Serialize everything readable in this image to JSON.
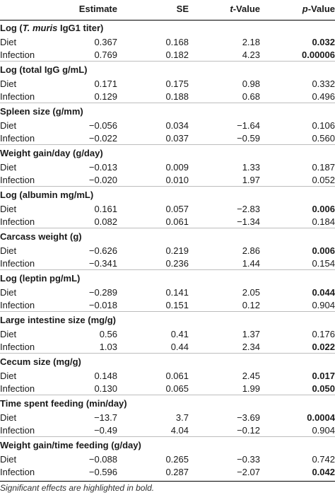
{
  "header": {
    "estimate": "Estimate",
    "se": "SE",
    "t_italic": "t",
    "t_rest": "-Value",
    "p_italic": "p",
    "p_rest": "-Value"
  },
  "sections": [
    {
      "title_pre": "Log (",
      "title_ital": "T. muris",
      "title_post": " IgG1 titer)",
      "rows": [
        {
          "label": "Diet",
          "estimate": "0.367",
          "se": "0.168",
          "t": "2.18",
          "p": "0.032",
          "sig": true
        },
        {
          "label": "Infection",
          "estimate": "0.769",
          "se": "0.182",
          "t": "4.23",
          "p": "0.00006",
          "sig": true
        }
      ]
    },
    {
      "title_pre": "Log (total IgG g/mL)",
      "title_ital": "",
      "title_post": "",
      "rows": [
        {
          "label": "Diet",
          "estimate": "0.171",
          "se": "0.175",
          "t": "0.98",
          "p": "0.332",
          "sig": false
        },
        {
          "label": "Infection",
          "estimate": "0.129",
          "se": "0.188",
          "t": "0.68",
          "p": "0.496",
          "sig": false
        }
      ]
    },
    {
      "title_pre": "Spleen size (g/mm)",
      "title_ital": "",
      "title_post": "",
      "rows": [
        {
          "label": "Diet",
          "estimate": "−0.056",
          "se": "0.034",
          "t": "−1.64",
          "p": "0.106",
          "sig": false
        },
        {
          "label": "Infection",
          "estimate": "−0.022",
          "se": "0.037",
          "t": "−0.59",
          "p": "0.560",
          "sig": false
        }
      ]
    },
    {
      "title_pre": "Weight gain/day (g/day)",
      "title_ital": "",
      "title_post": "",
      "rows": [
        {
          "label": "Diet",
          "estimate": "−0.013",
          "se": "0.009",
          "t": "1.33",
          "p": "0.187",
          "sig": false
        },
        {
          "label": "Infection",
          "estimate": "−0.020",
          "se": "0.010",
          "t": "1.97",
          "p": "0.052",
          "sig": false
        }
      ]
    },
    {
      "title_pre": "Log (albumin mg/mL)",
      "title_ital": "",
      "title_post": "",
      "rows": [
        {
          "label": "Diet",
          "estimate": "0.161",
          "se": "0.057",
          "t": "−2.83",
          "p": "0.006",
          "sig": true
        },
        {
          "label": "Infection",
          "estimate": "0.082",
          "se": "0.061",
          "t": "−1.34",
          "p": "0.184",
          "sig": false
        }
      ]
    },
    {
      "title_pre": "Carcass weight (g)",
      "title_ital": "",
      "title_post": "",
      "rows": [
        {
          "label": "Diet",
          "estimate": "−0.626",
          "se": "0.219",
          "t": "2.86",
          "p": "0.006",
          "sig": true
        },
        {
          "label": "Infection",
          "estimate": "−0.341",
          "se": "0.236",
          "t": "1.44",
          "p": "0.154",
          "sig": false
        }
      ]
    },
    {
      "title_pre": "Log (leptin pg/mL)",
      "title_ital": "",
      "title_post": "",
      "rows": [
        {
          "label": "Diet",
          "estimate": "−0.289",
          "se": "0.141",
          "t": "2.05",
          "p": "0.044",
          "sig": true
        },
        {
          "label": "Infection",
          "estimate": "−0.018",
          "se": "0.151",
          "t": "0.12",
          "p": "0.904",
          "sig": false
        }
      ]
    },
    {
      "title_pre": "Large intestine size (mg/g)",
      "title_ital": "",
      "title_post": "",
      "rows": [
        {
          "label": "Diet",
          "estimate": "0.56",
          "se": "0.41",
          "t": "1.37",
          "p": "0.176",
          "sig": false
        },
        {
          "label": "Infection",
          "estimate": "1.03",
          "se": "0.44",
          "t": "2.34",
          "p": "0.022",
          "sig": true
        }
      ]
    },
    {
      "title_pre": "Cecum size (mg/g)",
      "title_ital": "",
      "title_post": "",
      "rows": [
        {
          "label": "Diet",
          "estimate": "0.148",
          "se": "0.061",
          "t": "2.45",
          "p": "0.017",
          "sig": true
        },
        {
          "label": "Infection",
          "estimate": "0.130",
          "se": "0.065",
          "t": "1.99",
          "p": "0.050",
          "sig": true
        }
      ]
    },
    {
      "title_pre": "Time spent feeding (min/day)",
      "title_ital": "",
      "title_post": "",
      "rows": [
        {
          "label": "Diet",
          "estimate": "−13.7",
          "se": "3.7",
          "t": "−3.69",
          "p": "0.0004",
          "sig": true
        },
        {
          "label": "Infection",
          "estimate": "−0.49",
          "se": "4.04",
          "t": "−0.12",
          "p": "0.904",
          "sig": false
        }
      ]
    },
    {
      "title_pre": "Weight gain/time feeding (g/day)",
      "title_ital": "",
      "title_post": "",
      "rows": [
        {
          "label": "Diet",
          "estimate": "−0.088",
          "se": "0.265",
          "t": "−0.33",
          "p": "0.742",
          "sig": false
        },
        {
          "label": "Infection",
          "estimate": "−0.596",
          "se": "0.287",
          "t": "−2.07",
          "p": "0.042",
          "sig": true
        }
      ]
    }
  ],
  "footnote": "Significant effects are highlighted in bold."
}
